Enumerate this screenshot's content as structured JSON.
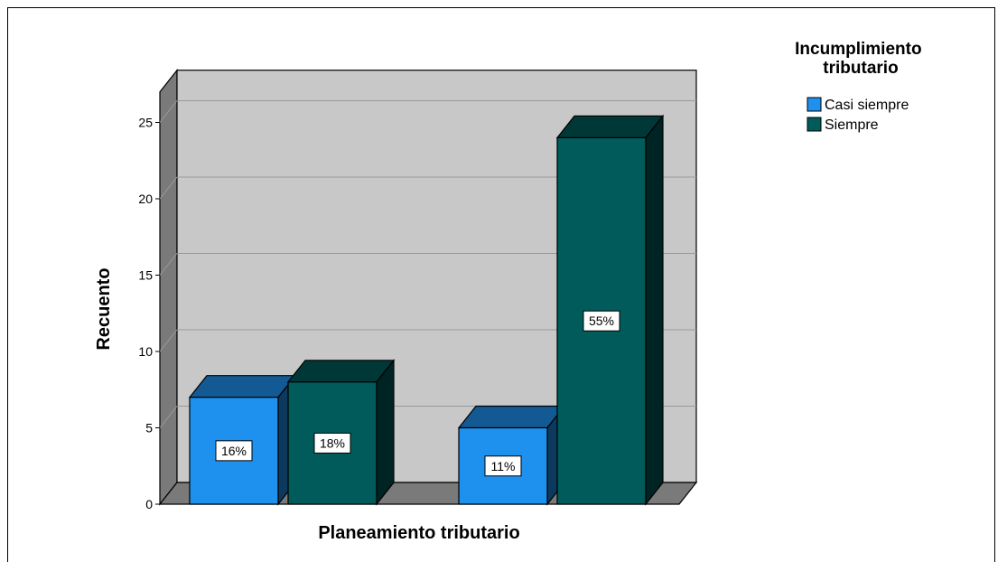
{
  "chart_data": {
    "type": "bar",
    "title": "",
    "xlabel": "Planeamiento tributario",
    "ylabel": "Recuento",
    "ylim": [
      0,
      27
    ],
    "yticks": [
      0,
      5,
      10,
      15,
      20,
      25
    ],
    "grid": true,
    "legend_position": "top-right",
    "legend_title": "Incumplimiento tributario",
    "categories": [
      "",
      ""
    ],
    "series": [
      {
        "name": "Casi siempre",
        "color": "#1e90ee",
        "values": [
          7,
          5
        ],
        "labels": [
          "16%",
          "11%"
        ]
      },
      {
        "name": "Siempre",
        "color": "#005b5a",
        "values": [
          8,
          24
        ],
        "labels": [
          "18%",
          "55%"
        ]
      }
    ]
  }
}
